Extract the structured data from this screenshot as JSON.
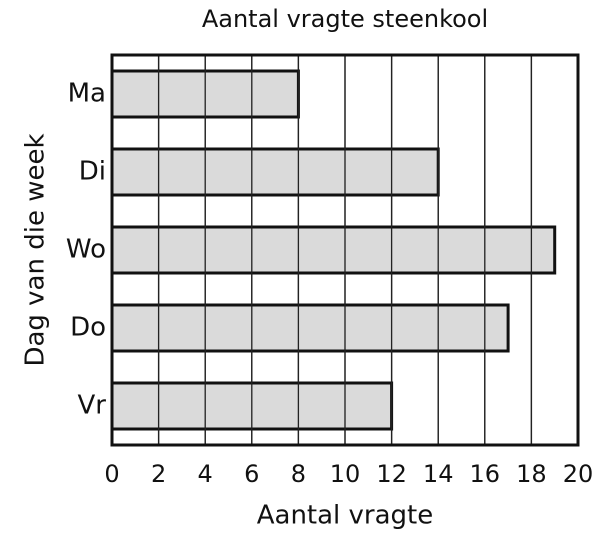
{
  "chart_data": {
    "type": "bar",
    "orientation": "horizontal",
    "title": "Aantal vragte steenkool",
    "categories": [
      "Ma",
      "Di",
      "Wo",
      "Do",
      "Vr"
    ],
    "values": [
      8,
      14,
      19,
      17,
      12
    ],
    "color": "#d3d3d3",
    "xlim": [
      0,
      20
    ],
    "xticks": [
      0,
      2,
      4,
      6,
      8,
      10,
      12,
      14,
      16,
      18,
      20
    ],
    "grid": true,
    "xlabel": "Aantal vragte",
    "ylabel": "Dag van die week"
  }
}
